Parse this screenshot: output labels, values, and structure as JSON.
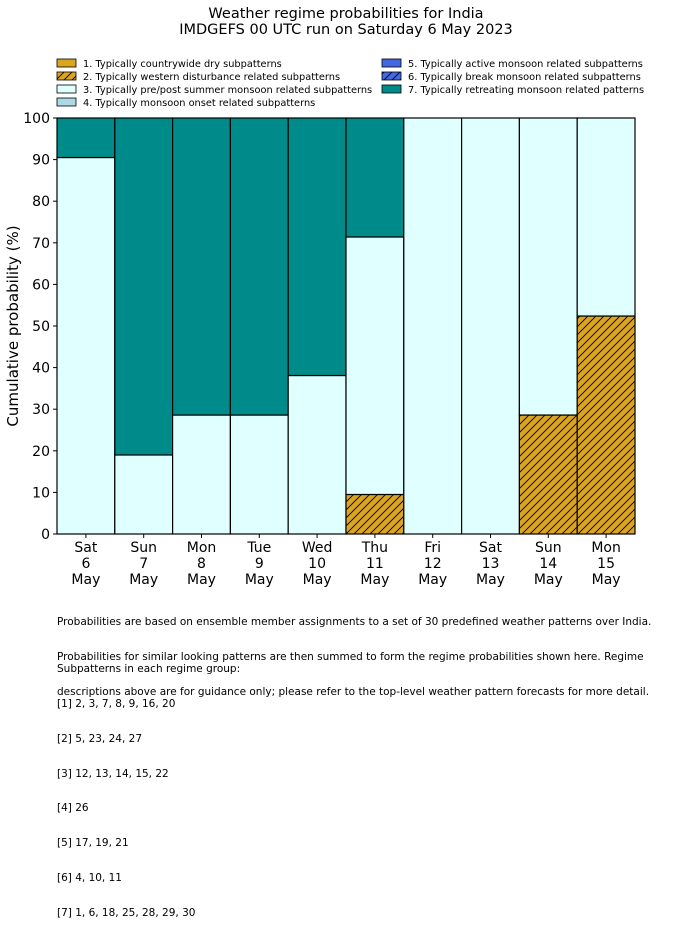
{
  "chart_data": {
    "type": "bar",
    "stacked": true,
    "title": "Weather regime probabilities for India",
    "subtitle": "IMDGEFS 00 UTC run on Saturday 6 May 2023",
    "ylabel": "Cumulative probability (%)",
    "xlabel": "",
    "ylim": [
      0,
      100
    ],
    "yticks": [
      0,
      10,
      20,
      30,
      40,
      50,
      60,
      70,
      80,
      90,
      100
    ],
    "grid": false,
    "legend_position": "top",
    "categories": [
      [
        "Sat",
        "6",
        "May"
      ],
      [
        "Sun",
        "7",
        "May"
      ],
      [
        "Mon",
        "8",
        "May"
      ],
      [
        "Tue",
        "9",
        "May"
      ],
      [
        "Wed",
        "10",
        "May"
      ],
      [
        "Thu",
        "11",
        "May"
      ],
      [
        "Fri",
        "12",
        "May"
      ],
      [
        "Sat",
        "13",
        "May"
      ],
      [
        "Sun",
        "14",
        "May"
      ],
      [
        "Mon",
        "15",
        "May"
      ]
    ],
    "series": [
      {
        "name": "1. Typically countrywide dry subpatterns",
        "color": "#daa520",
        "hatch": false,
        "values": [
          0,
          0,
          0,
          0,
          0,
          0,
          0,
          0,
          0,
          0
        ]
      },
      {
        "name": "2. Typically western disturbance related subpatterns",
        "color": "#daa520",
        "hatch": true,
        "values": [
          0,
          0,
          0,
          0,
          0,
          9.5,
          0,
          0,
          28.6,
          52.4
        ]
      },
      {
        "name": "3. Typically pre/post summer monsoon related subpatterns",
        "color": "#e0ffff",
        "hatch": false,
        "values": [
          90.5,
          19,
          28.6,
          28.6,
          38.1,
          61.9,
          100,
          100,
          71.4,
          47.6
        ]
      },
      {
        "name": "4. Typically monsoon onset related subpatterns",
        "color": "#add8e6",
        "hatch": false,
        "values": [
          0,
          0,
          0,
          0,
          0,
          0,
          0,
          0,
          0,
          0
        ]
      },
      {
        "name": "5. Typically active monsoon related subpatterns",
        "color": "#4169e1",
        "hatch": false,
        "values": [
          0,
          0,
          0,
          0,
          0,
          0,
          0,
          0,
          0,
          0
        ]
      },
      {
        "name": "6. Typically break monsoon related subpatterns",
        "color": "#4169e1",
        "hatch": true,
        "values": [
          0,
          0,
          0,
          0,
          0,
          0,
          0,
          0,
          0,
          0
        ]
      },
      {
        "name": "7. Typically retreating monsoon related patterns",
        "color": "#008b8b",
        "hatch": false,
        "values": [
          9.5,
          81,
          71.4,
          71.4,
          61.9,
          28.6,
          0,
          0,
          0,
          0
        ]
      }
    ]
  },
  "footnote": {
    "lines": [
      "Probabilities are based on ensemble member assignments to a set of 30 predefined weather patterns over India.",
      "Probabilities for similar looking patterns are then summed to form the regime probabilities shown here. Regime",
      "descriptions above are for guidance only; please refer to the top-level weather pattern forecasts for more detail."
    ],
    "subpatterns_title": "Subpatterns in each regime group:",
    "subpatterns": [
      "[1] 2, 3, 7, 8, 9, 16, 20",
      "[2] 5, 23, 24, 27",
      "[3] 12, 13, 14, 15, 22",
      "[4] 26",
      "[5] 17, 19, 21",
      "[6] 4, 10, 11",
      "[7] 1, 6, 18, 25, 28, 29, 30"
    ]
  }
}
